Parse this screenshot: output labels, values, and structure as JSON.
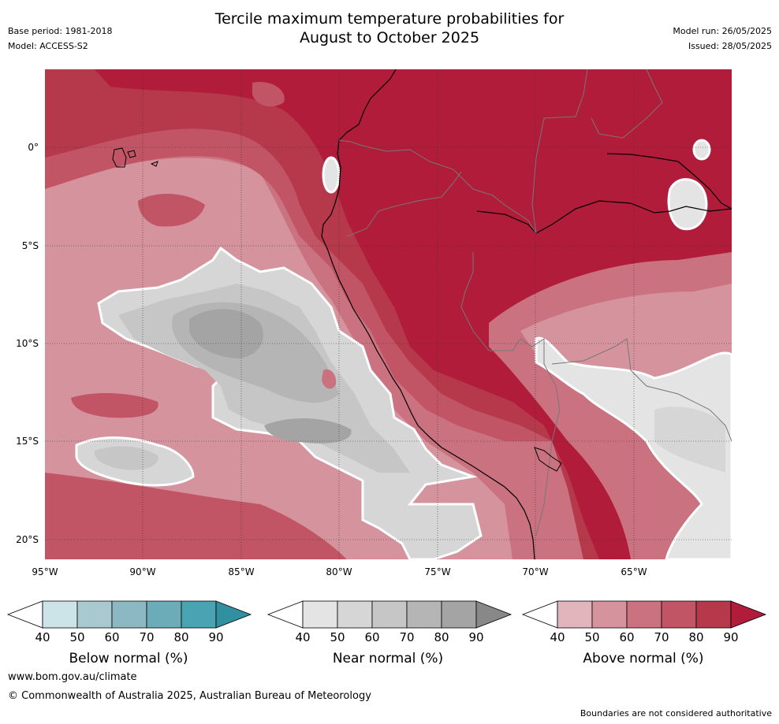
{
  "header": {
    "base_period": "Base period: 1981-2018",
    "model": "Model: ACCESS-S2",
    "title_line1": "Tercile maximum temperature probabilities for",
    "title_line2": "August to October 2025",
    "model_run": "Model run: 26/05/2025",
    "issued": "Issued: 28/05/2025"
  },
  "map": {
    "lat_labels": [
      "0°",
      "5°S",
      "10°S",
      "15°S",
      "20°S"
    ],
    "lon_labels": [
      "95°W",
      "90°W",
      "85°W",
      "80°W",
      "75°W",
      "70°W",
      "65°W"
    ]
  },
  "legend": {
    "ticks": [
      "40",
      "50",
      "60",
      "70",
      "80",
      "90"
    ],
    "below": {
      "label": "Below normal (%)",
      "colors": [
        "#ffffff",
        "#cce3e8",
        "#a8c9cf",
        "#8bb8c3",
        "#6cabb8",
        "#4aa3b3",
        "#31909f"
      ]
    },
    "near": {
      "label": "Near normal (%)",
      "colors": [
        "#ffffff",
        "#e4e4e4",
        "#d6d6d6",
        "#c6c6c6",
        "#b5b5b5",
        "#a4a4a4",
        "#888888"
      ]
    },
    "above": {
      "label": "Above normal (%)",
      "colors": [
        "#ffffff",
        "#e2b5bc",
        "#d5939d",
        "#ca727f",
        "#c15566",
        "#b6384b",
        "#b01c3a"
      ]
    }
  },
  "footer": {
    "url": "www.bom.gov.au/climate",
    "copyright": "© Commonwealth of Australia 2025, Australian Bureau of Meteorology",
    "note": "Boundaries are not considered authoritative"
  }
}
